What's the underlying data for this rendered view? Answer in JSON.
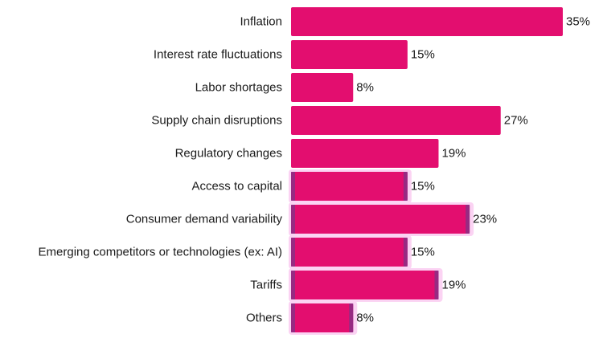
{
  "chart_data": {
    "type": "bar",
    "orientation": "horizontal",
    "categories": [
      "Inflation",
      "Interest rate fluctuations",
      "Labor shortages",
      "Supply chain disruptions",
      "Regulatory changes",
      "Access to capital",
      "Consumer demand variability",
      "Emerging competitors or technologies (ex: AI)",
      "Tariffs",
      "Others"
    ],
    "values": [
      35,
      15,
      8,
      27,
      19,
      15,
      23,
      15,
      19,
      8
    ],
    "value_labels": [
      "35%",
      "15%",
      "8%",
      "27%",
      "19%",
      "15%",
      "23%",
      "15%",
      "19%",
      "8%"
    ],
    "title": "",
    "xlabel": "",
    "ylabel": "",
    "xlim": [
      0,
      35
    ],
    "grid": false,
    "legend": "none",
    "bar_color": "#e30e6f",
    "highlight_color": "#fbd3f3",
    "edge_color": "#8a2f86",
    "highlighted": [
      "Access to capital",
      "Consumer demand variability",
      "Emerging competitors or technologies (ex: AI)",
      "Tariffs",
      "Others"
    ]
  }
}
